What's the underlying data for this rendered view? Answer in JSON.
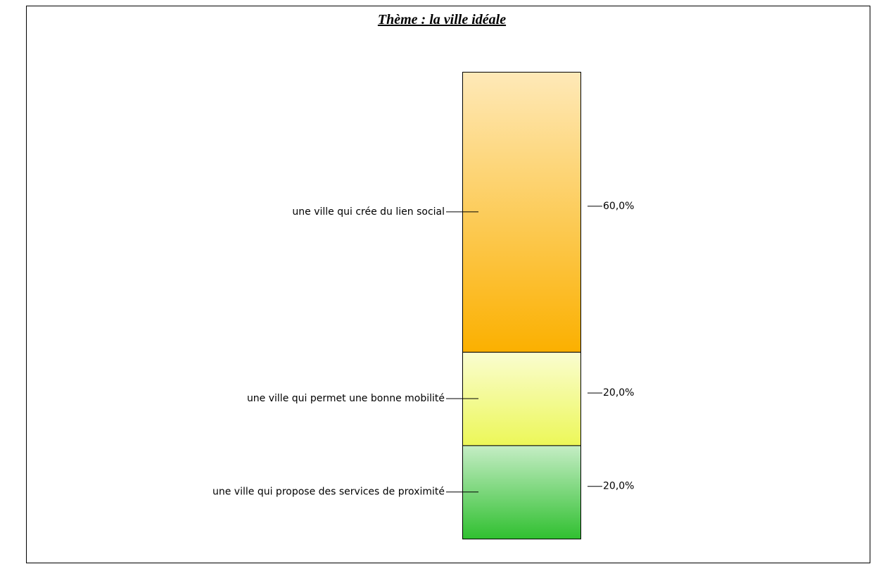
{
  "chart_data": {
    "type": "stacked_bar",
    "title": "Thème : la ville idéale",
    "categories": [
      "une ville qui crée du lien social",
      "une ville qui permet une bonne mobilité",
      "une ville qui propose des services de proximité"
    ],
    "values": [
      60,
      20,
      20
    ],
    "value_labels": [
      "60,0%",
      "20,0%",
      "20,0%"
    ],
    "colors": [
      "#fbb000",
      "#ecf758",
      "#30c030"
    ]
  }
}
